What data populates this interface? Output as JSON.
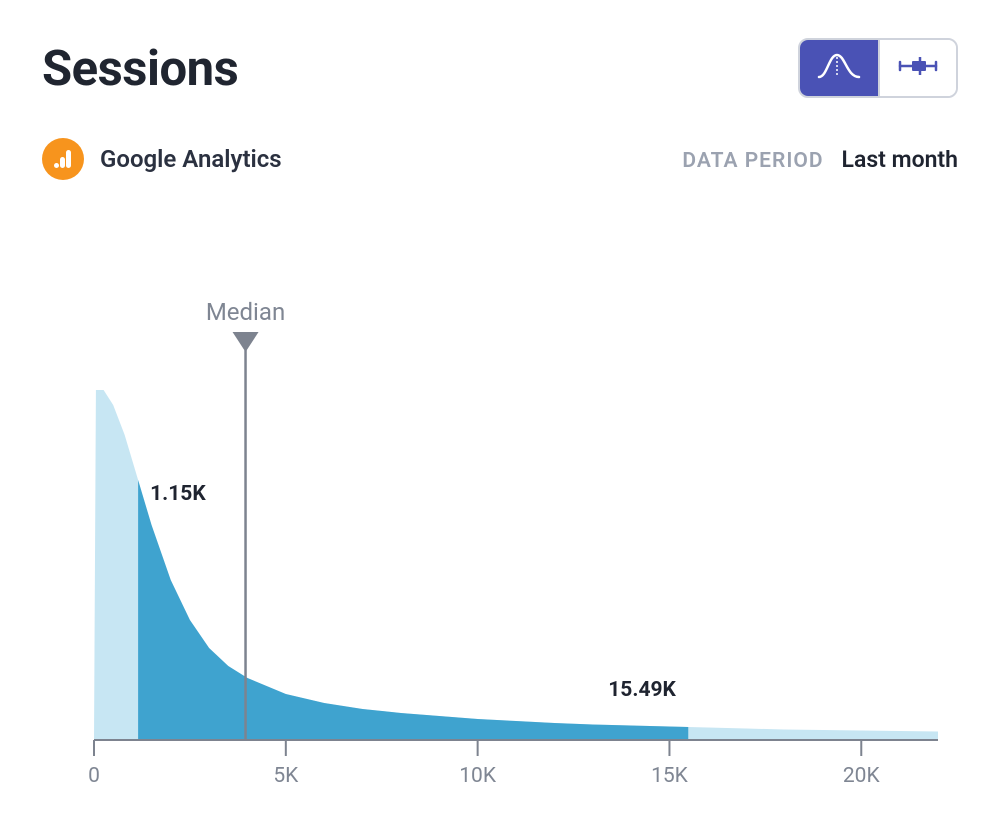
{
  "header": {
    "title": "Sessions"
  },
  "toggle": {
    "active_index": 0,
    "active_bg": "#4a52b5",
    "inactive_bg": "#ffffff",
    "border_color": "#cfd3dc",
    "icon_active_stroke": "#ffffff",
    "icon_inactive_stroke": "#4a52b5"
  },
  "source": {
    "name": "Google Analytics",
    "icon_bg": "#f7941d",
    "icon_fg": "#ffffff"
  },
  "period": {
    "label": "DATA PERIOD",
    "value": "Last month"
  },
  "chart": {
    "type": "area-distribution",
    "xlim": [
      0,
      22000
    ],
    "xticks": [
      0,
      5000,
      10000,
      15000,
      20000
    ],
    "xtick_labels": [
      "0",
      "5K",
      "10K",
      "15K",
      "20K"
    ],
    "plot_height_units": 350,
    "curve": [
      [
        0,
        0
      ],
      [
        50,
        350
      ],
      [
        250,
        350
      ],
      [
        500,
        335
      ],
      [
        800,
        305
      ],
      [
        1150,
        260
      ],
      [
        1500,
        215
      ],
      [
        2000,
        160
      ],
      [
        2500,
        120
      ],
      [
        3000,
        92
      ],
      [
        3500,
        74
      ],
      [
        4000,
        62
      ],
      [
        5000,
        46
      ],
      [
        6000,
        37
      ],
      [
        7000,
        31
      ],
      [
        8000,
        27
      ],
      [
        9000,
        24
      ],
      [
        10000,
        21
      ],
      [
        11000,
        19
      ],
      [
        12000,
        17
      ],
      [
        13000,
        15.5
      ],
      [
        14000,
        14.5
      ],
      [
        15000,
        13.5
      ],
      [
        15490,
        13
      ],
      [
        16000,
        12.5
      ],
      [
        17000,
        11.5
      ],
      [
        18000,
        10.5
      ],
      [
        19000,
        10
      ],
      [
        20000,
        9.5
      ],
      [
        21000,
        9
      ],
      [
        22000,
        8.5
      ]
    ],
    "highlight_range": [
      1150,
      15490
    ],
    "light_fill": "#c7e6f3",
    "dark_fill": "#3fa3cf",
    "baseline_color": "#7d838f",
    "tick_color": "#7d838f",
    "median_x": 3950,
    "median_label": "Median",
    "median_line_color": "#7d838f",
    "median_marker_fill": "#7d838f",
    "markers": [
      {
        "x": 1150,
        "label": "1.15K",
        "label_dx": 12,
        "label_y_units": 240
      },
      {
        "x": 15490,
        "label": "15.49K",
        "label_dx": -80,
        "label_y_units": 44
      }
    ],
    "axis_label_color": "#7f8693",
    "marker_label_color": "#1f2430",
    "background": "#ffffff"
  }
}
